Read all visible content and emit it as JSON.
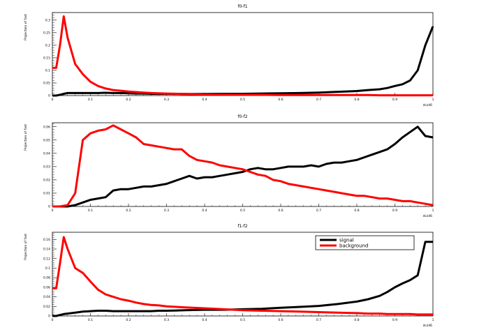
{
  "x_axis_label": "dcz46",
  "chart_data": [
    {
      "type": "line",
      "title": "f0-f1",
      "ylabel": "Projection of fast",
      "xlim": [
        0,
        1
      ],
      "ylim": [
        0,
        0.33
      ],
      "xticks": [
        0,
        0.1,
        0.2,
        0.3,
        0.4,
        0.5,
        0.6,
        0.7,
        0.8,
        0.9,
        1
      ],
      "yticks": [
        0,
        0.05,
        0.1,
        0.15,
        0.2,
        0.25,
        0.3
      ],
      "xtick_labels": [
        "0",
        "0.1",
        "0.2",
        "0.3",
        "0.4",
        "0.5",
        "0.6",
        "0.7",
        "0.8",
        "0.9",
        "1"
      ],
      "ytick_labels": [
        "0",
        "0.05",
        "0.1",
        "0.15",
        "0.2",
        "0.25",
        "0.3"
      ],
      "x": [
        0,
        0.01,
        0.02,
        0.03,
        0.04,
        0.06,
        0.08,
        0.1,
        0.12,
        0.14,
        0.16,
        0.18,
        0.2,
        0.22,
        0.24,
        0.26,
        0.3,
        0.35,
        0.4,
        0.45,
        0.5,
        0.55,
        0.6,
        0.65,
        0.7,
        0.75,
        0.8,
        0.83,
        0.86,
        0.88,
        0.9,
        0.92,
        0.94,
        0.96,
        0.98,
        1.0
      ],
      "series": [
        {
          "name": "signal",
          "color": "#000000",
          "values": [
            0,
            0,
            0.003,
            0.007,
            0.01,
            0.01,
            0.01,
            0.01,
            0.01,
            0.011,
            0.01,
            0.01,
            0.009,
            0.008,
            0.008,
            0.007,
            0.007,
            0.006,
            0.006,
            0.007,
            0.007,
            0.008,
            0.009,
            0.01,
            0.012,
            0.015,
            0.018,
            0.022,
            0.025,
            0.03,
            0.038,
            0.045,
            0.06,
            0.1,
            0.2,
            0.275
          ]
        },
        {
          "name": "background",
          "color": "#ff0000",
          "values": [
            0.11,
            0.11,
            0.2,
            0.315,
            0.23,
            0.125,
            0.085,
            0.055,
            0.038,
            0.028,
            0.022,
            0.019,
            0.016,
            0.014,
            0.012,
            0.01,
            0.008,
            0.006,
            0.004,
            0.004,
            0.003,
            0.003,
            0.002,
            0.002,
            0.002,
            0.002,
            0.002,
            0.002,
            0.001,
            0.001,
            0.001,
            0.001,
            0.001,
            0.001,
            0.001,
            0.001
          ]
        }
      ]
    },
    {
      "type": "line",
      "title": "f0-f2",
      "ylabel": "Projection of fast",
      "xlim": [
        0,
        1
      ],
      "ylim": [
        0,
        0.063
      ],
      "xticks": [
        0,
        0.1,
        0.2,
        0.3,
        0.4,
        0.5,
        0.6,
        0.7,
        0.8,
        0.9,
        1
      ],
      "yticks": [
        0,
        0.01,
        0.02,
        0.03,
        0.04,
        0.05,
        0.06
      ],
      "xtick_labels": [
        "0",
        "0.1",
        "0.2",
        "0.3",
        "0.4",
        "0.5",
        "0.6",
        "0.7",
        "0.8",
        "0.9",
        "1"
      ],
      "ytick_labels": [
        "0",
        "0.01",
        "0.02",
        "0.03",
        "0.04",
        "0.05",
        "0.06"
      ],
      "x": [
        0,
        0.02,
        0.04,
        0.06,
        0.08,
        0.1,
        0.12,
        0.14,
        0.16,
        0.18,
        0.2,
        0.22,
        0.24,
        0.26,
        0.28,
        0.3,
        0.32,
        0.34,
        0.36,
        0.38,
        0.4,
        0.42,
        0.44,
        0.46,
        0.48,
        0.5,
        0.52,
        0.54,
        0.56,
        0.58,
        0.6,
        0.62,
        0.64,
        0.66,
        0.68,
        0.7,
        0.72,
        0.74,
        0.76,
        0.78,
        0.8,
        0.82,
        0.84,
        0.86,
        0.88,
        0.9,
        0.92,
        0.94,
        0.96,
        0.98,
        1.0
      ],
      "series": [
        {
          "name": "signal",
          "color": "#000000",
          "values": [
            0,
            0,
            0,
            0.001,
            0.003,
            0.005,
            0.006,
            0.007,
            0.012,
            0.013,
            0.013,
            0.014,
            0.015,
            0.015,
            0.016,
            0.017,
            0.019,
            0.021,
            0.023,
            0.021,
            0.022,
            0.022,
            0.023,
            0.024,
            0.025,
            0.026,
            0.028,
            0.029,
            0.028,
            0.028,
            0.029,
            0.03,
            0.03,
            0.03,
            0.031,
            0.03,
            0.032,
            0.033,
            0.033,
            0.034,
            0.035,
            0.037,
            0.039,
            0.041,
            0.043,
            0.047,
            0.052,
            0.056,
            0.06,
            0.053,
            0.052
          ]
        },
        {
          "name": "background",
          "color": "#ff0000",
          "values": [
            0,
            0,
            0.001,
            0.01,
            0.05,
            0.055,
            0.057,
            0.058,
            0.061,
            0.058,
            0.055,
            0.052,
            0.047,
            0.046,
            0.045,
            0.044,
            0.043,
            0.043,
            0.038,
            0.035,
            0.034,
            0.033,
            0.031,
            0.03,
            0.029,
            0.028,
            0.026,
            0.024,
            0.023,
            0.02,
            0.019,
            0.017,
            0.016,
            0.015,
            0.014,
            0.013,
            0.012,
            0.011,
            0.01,
            0.009,
            0.008,
            0.008,
            0.007,
            0.006,
            0.006,
            0.005,
            0.004,
            0.004,
            0.003,
            0.002,
            0.001
          ]
        }
      ]
    },
    {
      "type": "line",
      "title": "f1-f2",
      "ylabel": "Projection of fast",
      "xlim": [
        0,
        1
      ],
      "ylim": [
        0,
        0.175
      ],
      "xticks": [
        0,
        0.1,
        0.2,
        0.3,
        0.4,
        0.5,
        0.6,
        0.7,
        0.8,
        0.9,
        1
      ],
      "yticks": [
        0,
        0.02,
        0.04,
        0.06,
        0.08,
        0.1,
        0.12,
        0.14,
        0.16
      ],
      "xtick_labels": [
        "0",
        "0.1",
        "0.2",
        "0.3",
        "0.4",
        "0.5",
        "0.6",
        "0.7",
        "0.8",
        "0.9",
        "1"
      ],
      "ytick_labels": [
        "0",
        "0.02",
        "0.04",
        "0.06",
        "0.08",
        "0.1",
        "0.12",
        "0.14",
        "0.16"
      ],
      "legend": {
        "position": "top-right",
        "entries": [
          "signal",
          "background"
        ]
      },
      "x": [
        0,
        0.01,
        0.02,
        0.03,
        0.04,
        0.06,
        0.08,
        0.1,
        0.12,
        0.14,
        0.16,
        0.18,
        0.2,
        0.22,
        0.24,
        0.26,
        0.28,
        0.3,
        0.35,
        0.4,
        0.45,
        0.5,
        0.55,
        0.6,
        0.65,
        0.7,
        0.75,
        0.8,
        0.83,
        0.86,
        0.88,
        0.9,
        0.92,
        0.94,
        0.96,
        0.98,
        1.0
      ],
      "series": [
        {
          "name": "signal",
          "color": "#000000",
          "values": [
            0,
            0,
            0.002,
            0.004,
            0.005,
            0.007,
            0.009,
            0.01,
            0.011,
            0.011,
            0.01,
            0.01,
            0.01,
            0.01,
            0.01,
            0.01,
            0.011,
            0.011,
            0.012,
            0.013,
            0.013,
            0.014,
            0.015,
            0.017,
            0.019,
            0.021,
            0.025,
            0.03,
            0.035,
            0.042,
            0.05,
            0.06,
            0.068,
            0.075,
            0.085,
            0.155,
            0.155
          ]
        },
        {
          "name": "background",
          "color": "#ff0000",
          "values": [
            0.058,
            0.058,
            0.11,
            0.165,
            0.14,
            0.1,
            0.09,
            0.072,
            0.055,
            0.045,
            0.04,
            0.035,
            0.032,
            0.028,
            0.025,
            0.023,
            0.022,
            0.02,
            0.018,
            0.016,
            0.014,
            0.012,
            0.011,
            0.01,
            0.009,
            0.008,
            0.007,
            0.006,
            0.005,
            0.005,
            0.004,
            0.004,
            0.004,
            0.004,
            0.003,
            0.003,
            0.003
          ]
        }
      ]
    }
  ]
}
